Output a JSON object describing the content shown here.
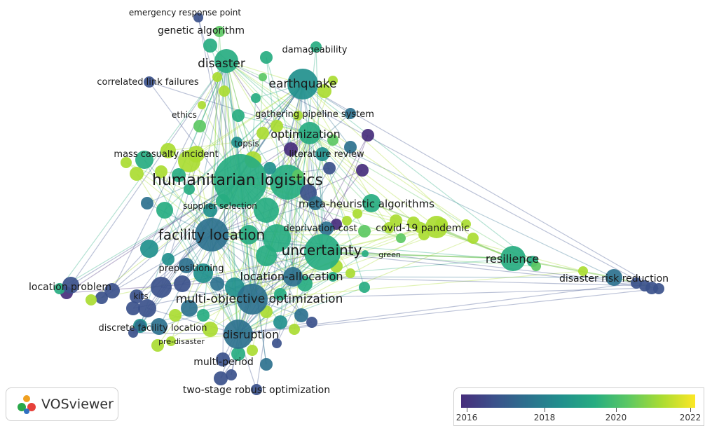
{
  "keywords": [
    {
      "label": "emergency response point"
    },
    {
      "label": "genetic algorithm"
    },
    {
      "label": "damageability"
    },
    {
      "label": "disaster"
    },
    {
      "label": "earthquake"
    },
    {
      "label": "correlated link failures"
    },
    {
      "label": "ethics"
    },
    {
      "label": "gathering pipeline system"
    },
    {
      "label": "optimization"
    },
    {
      "label": "topsis"
    },
    {
      "label": "mass casualty incident"
    },
    {
      "label": "literature review"
    },
    {
      "label": "humanitarian logistics"
    },
    {
      "label": "supplier selection"
    },
    {
      "label": "meta-heuristic algorithms"
    },
    {
      "label": "facility location"
    },
    {
      "label": "deprivation cost"
    },
    {
      "label": "covid-19 pandemic"
    },
    {
      "label": "uncertainty"
    },
    {
      "label": "green"
    },
    {
      "label": "resilience"
    },
    {
      "label": "prepositioning"
    },
    {
      "label": "location-allocation"
    },
    {
      "label": "disaster risk reduction"
    },
    {
      "label": "location problem"
    },
    {
      "label": "kits"
    },
    {
      "label": "multi-objective optimization"
    },
    {
      "label": "discrete facility location"
    },
    {
      "label": "pre-disaster"
    },
    {
      "label": "disruption"
    },
    {
      "label": "multi-period"
    },
    {
      "label": "two-stage robust optimization"
    }
  ],
  "legend": {
    "app_name": "VOSviewer",
    "ticks": [
      "2016",
      "2018",
      "2020",
      "2022"
    ]
  }
}
